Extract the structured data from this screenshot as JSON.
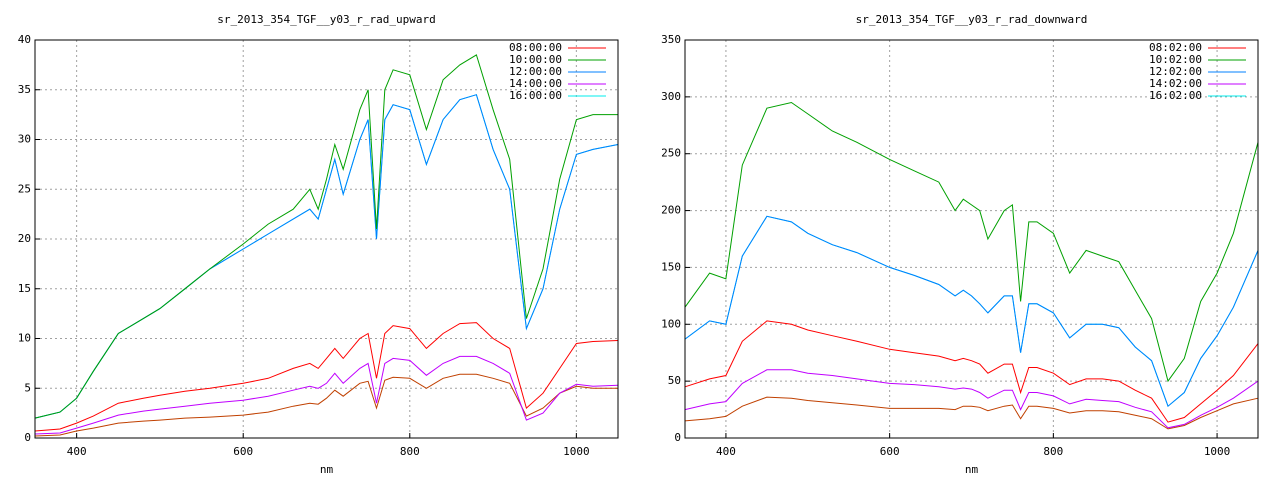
{
  "chart_data": [
    {
      "type": "line",
      "title": "sr_2013_354_TGF__y03_r_rad_upward",
      "x_label": "nm",
      "x": [
        350,
        380,
        400,
        420,
        450,
        480,
        500,
        530,
        560,
        600,
        630,
        660,
        680,
        690,
        700,
        710,
        720,
        740,
        750,
        760,
        770,
        780,
        800,
        820,
        840,
        860,
        880,
        900,
        920,
        940,
        960,
        980,
        1000,
        1020,
        1050
      ],
      "xlim": [
        350,
        1050
      ],
      "xticks": [
        400,
        600,
        800,
        1000
      ],
      "ylim": [
        0,
        40
      ],
      "yticks": [
        0,
        5,
        10,
        15,
        20,
        25,
        30,
        35,
        40
      ],
      "grid": true,
      "legend": "top-right",
      "series": [
        {
          "name": "08:00:00",
          "color": "#ff0000",
          "values": [
            0.7,
            0.9,
            1.5,
            2.2,
            3.5,
            4,
            4.3,
            4.7,
            5,
            5.5,
            6,
            7,
            7.5,
            7,
            8,
            9,
            8,
            10,
            10.5,
            6,
            10.5,
            11.3,
            11,
            9,
            10.5,
            11.5,
            11.6,
            10,
            9,
            3,
            4.5,
            7,
            9.5,
            9.7,
            9.8
          ]
        },
        {
          "name": "10:00:00",
          "color": "#00a000",
          "values": [
            2,
            2.6,
            4,
            6.7,
            10.5,
            12,
            13,
            15,
            17,
            19.5,
            21.5,
            23,
            25,
            23,
            26,
            29.5,
            27,
            33,
            35,
            21,
            35,
            37,
            36.5,
            31,
            36,
            37.5,
            38.5,
            33,
            28,
            12,
            17,
            26,
            32,
            32.5,
            32.5
          ]
        },
        {
          "name": "12:00:00",
          "color": "#0080ff",
          "values": [
            2,
            2.6,
            4,
            6.7,
            10.5,
            12,
            13,
            15,
            17,
            19,
            20.5,
            22,
            23,
            22,
            25,
            28,
            24.5,
            30,
            32,
            20,
            32,
            33.5,
            33,
            27.5,
            32,
            34,
            34.5,
            29,
            25,
            11,
            15,
            23,
            28.5,
            29,
            29.5
          ]
        },
        {
          "name": "14:00:00",
          "color": "#c000ff",
          "values": [
            0.4,
            0.5,
            1,
            1.5,
            2.3,
            2.7,
            2.9,
            3.2,
            3.5,
            3.8,
            4.2,
            4.8,
            5.2,
            5,
            5.5,
            6.5,
            5.5,
            7,
            7.5,
            3.5,
            7.5,
            8,
            7.8,
            6.3,
            7.5,
            8.2,
            8.2,
            7.5,
            6.5,
            1.8,
            2.5,
            4.5,
            5.4,
            5.2,
            5.3
          ]
        },
        {
          "name": "16:00:00",
          "color": "#00eeee",
          "values": [
            2,
            2.6,
            4,
            6.7,
            10.5,
            12,
            13,
            15,
            17,
            19,
            20.5,
            22,
            23,
            22,
            25,
            28,
            24.5,
            30,
            32,
            20,
            32,
            33.5,
            33,
            27.5,
            32,
            34,
            34.5,
            29,
            25,
            11,
            15,
            23,
            28.5,
            29,
            29.5
          ]
        },
        {
          "color": "#c04000",
          "values": [
            0.2,
            0.3,
            0.7,
            1,
            1.5,
            1.7,
            1.8,
            2,
            2.1,
            2.3,
            2.6,
            3.2,
            3.5,
            3.4,
            4,
            4.8,
            4.2,
            5.5,
            5.7,
            3,
            5.8,
            6.1,
            6,
            5,
            6,
            6.4,
            6.4,
            6,
            5.5,
            2.2,
            3,
            4.5,
            5.2,
            5,
            5
          ]
        }
      ]
    },
    {
      "type": "line",
      "title": "sr_2013_354_TGF__y03_r_rad_downward",
      "x_label": "nm",
      "x": [
        350,
        380,
        400,
        420,
        450,
        480,
        500,
        530,
        560,
        600,
        630,
        660,
        680,
        690,
        700,
        710,
        720,
        740,
        750,
        760,
        770,
        780,
        800,
        820,
        840,
        860,
        880,
        900,
        920,
        940,
        960,
        980,
        1000,
        1020,
        1050
      ],
      "xlim": [
        350,
        1050
      ],
      "xticks": [
        400,
        600,
        800,
        1000
      ],
      "ylim": [
        0,
        350
      ],
      "yticks": [
        0,
        50,
        100,
        150,
        200,
        250,
        300,
        350
      ],
      "grid": true,
      "legend": "top-right",
      "series": [
        {
          "name": "08:02:00",
          "color": "#ff0000",
          "values": [
            45,
            52,
            55,
            85,
            103,
            100,
            95,
            90,
            85,
            78,
            75,
            72,
            68,
            70,
            68,
            65,
            57,
            65,
            65,
            40,
            62,
            62,
            57,
            47,
            52,
            52,
            50,
            42,
            35,
            14,
            18,
            30,
            42,
            55,
            83
          ]
        },
        {
          "name": "10:02:00",
          "color": "#00a000",
          "values": [
            115,
            145,
            140,
            240,
            290,
            295,
            285,
            270,
            260,
            245,
            235,
            225,
            200,
            210,
            205,
            200,
            175,
            200,
            205,
            120,
            190,
            190,
            180,
            145,
            165,
            160,
            155,
            130,
            105,
            50,
            70,
            120,
            145,
            180,
            260
          ]
        },
        {
          "name": "12:02:00",
          "color": "#0080ff",
          "values": [
            87,
            103,
            100,
            160,
            195,
            190,
            180,
            170,
            163,
            150,
            143,
            135,
            125,
            130,
            125,
            118,
            110,
            125,
            125,
            75,
            118,
            118,
            110,
            88,
            100,
            100,
            97,
            80,
            68,
            28,
            40,
            70,
            90,
            115,
            165
          ]
        },
        {
          "name": "14:02:00",
          "color": "#c000ff",
          "values": [
            25,
            30,
            32,
            48,
            60,
            60,
            57,
            55,
            52,
            48,
            47,
            45,
            43,
            44,
            43,
            40,
            35,
            42,
            42,
            25,
            40,
            40,
            37,
            30,
            34,
            33,
            32,
            27,
            23,
            9,
            12,
            20,
            27,
            35,
            50
          ]
        },
        {
          "name": "16:02:00",
          "color": "#00eeee",
          "values": [
            87,
            103,
            100,
            160,
            195,
            190,
            180,
            170,
            163,
            150,
            143,
            135,
            125,
            130,
            125,
            118,
            110,
            125,
            125,
            75,
            118,
            118,
            110,
            88,
            100,
            100,
            97,
            80,
            68,
            28,
            40,
            70,
            90,
            115,
            165
          ]
        },
        {
          "color": "#c04000",
          "values": [
            15,
            17,
            19,
            28,
            36,
            35,
            33,
            31,
            29,
            26,
            26,
            26,
            25,
            28,
            28,
            27,
            24,
            28,
            29,
            17,
            28,
            28,
            26,
            22,
            24,
            24,
            23,
            20,
            17,
            8,
            11,
            18,
            24,
            30,
            35
          ]
        }
      ]
    }
  ]
}
